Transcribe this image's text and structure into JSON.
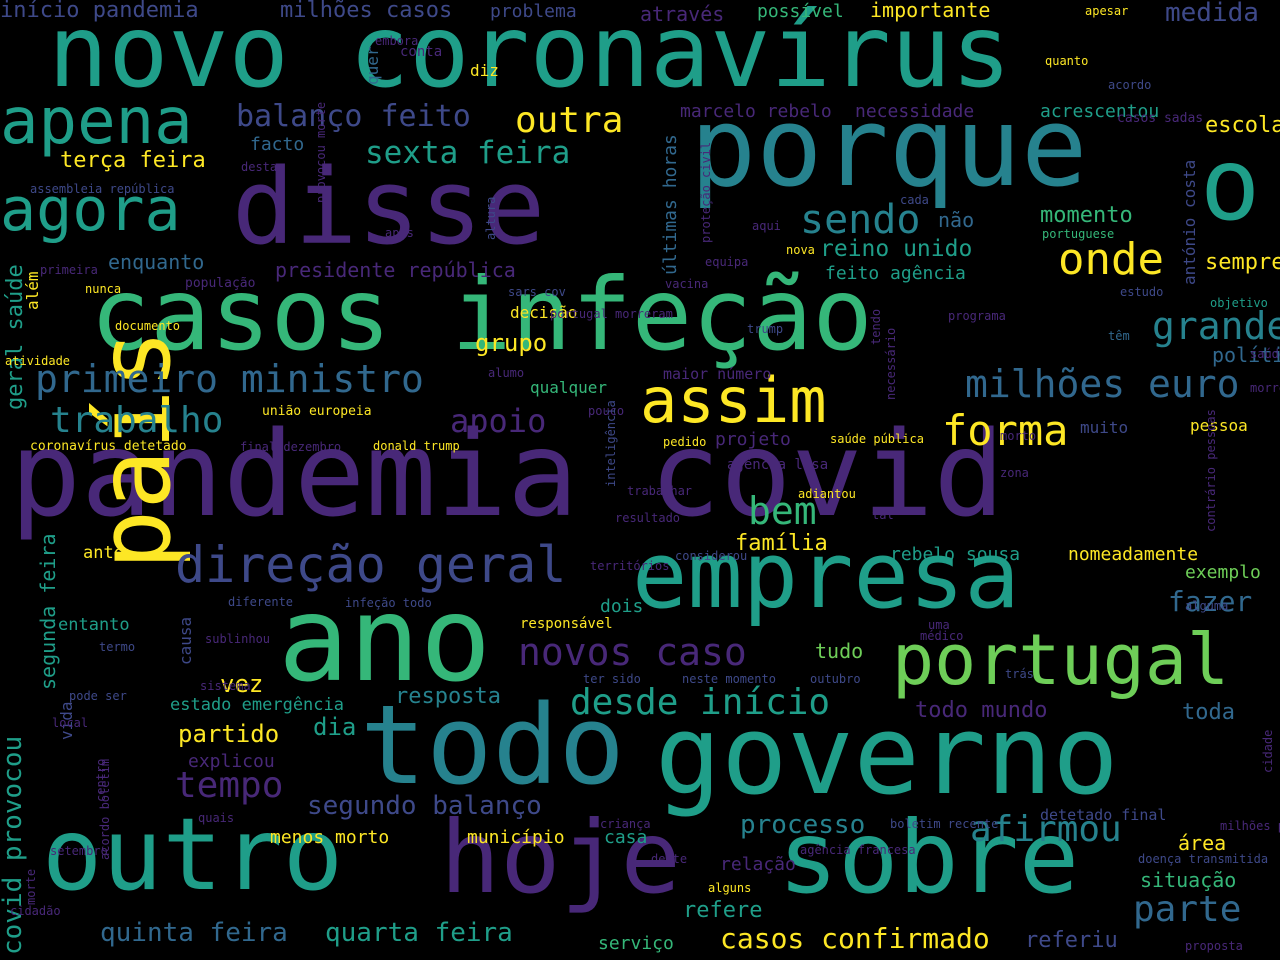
{
  "palette": {
    "background": "#000000",
    "purple": "#482878",
    "indigo": "#3e4989",
    "blue": "#31688e",
    "teal": "#26828e",
    "sea": "#1f9e89",
    "green": "#35b779",
    "lime": "#6ece58",
    "yellow": "#fde725"
  },
  "words": [
    {
      "text": "pandemia covid",
      "color": "purple"
    },
    {
      "text": "novo coronavírus",
      "color": "sea"
    },
    {
      "text": "casos infeção",
      "color": "green"
    },
    {
      "text": "disse",
      "color": "purple"
    },
    {
      "text": "porque",
      "color": "teal"
    },
    {
      "text": "o",
      "color": "sea"
    },
    {
      "text": "governo",
      "color": "sea"
    },
    {
      "text": "todo",
      "color": "teal"
    },
    {
      "text": "ano",
      "color": "green"
    },
    {
      "text": "país",
      "color": "yellow"
    },
    {
      "text": "empresa",
      "color": "sea"
    },
    {
      "text": "outro",
      "color": "sea"
    },
    {
      "text": "hoje",
      "color": "purple"
    },
    {
      "text": "sobre",
      "color": "sea"
    },
    {
      "text": "portugal",
      "color": "lime"
    },
    {
      "text": "apena",
      "color": "sea"
    },
    {
      "text": "agora",
      "color": "sea"
    },
    {
      "text": "assim",
      "color": "yellow"
    },
    {
      "text": "primeiro ministro",
      "color": "blue"
    },
    {
      "text": "milhões euro",
      "color": "blue"
    },
    {
      "text": "direção geral",
      "color": "indigo"
    },
    {
      "text": "trabalho",
      "color": "teal"
    },
    {
      "text": "forma",
      "color": "yellow"
    },
    {
      "text": "onde",
      "color": "yellow"
    },
    {
      "text": "sendo",
      "color": "teal"
    },
    {
      "text": "outra",
      "color": "yellow"
    },
    {
      "text": "sexta feira",
      "color": "sea"
    },
    {
      "text": "balanço feito",
      "color": "indigo"
    },
    {
      "text": "desde início",
      "color": "sea"
    },
    {
      "text": "afirmou",
      "color": "teal"
    },
    {
      "text": "novos caso",
      "color": "purple"
    },
    {
      "text": "parte",
      "color": "blue"
    },
    {
      "text": "bem",
      "color": "green"
    },
    {
      "text": "tempo",
      "color": "purple"
    },
    {
      "text": "casos confirmado",
      "color": "yellow"
    },
    {
      "text": "quinta feira",
      "color": "blue"
    },
    {
      "text": "quarta feira",
      "color": "sea"
    },
    {
      "text": "segundo balanço",
      "color": "indigo"
    },
    {
      "text": "processo",
      "color": "teal"
    },
    {
      "text": "reino unido",
      "color": "sea"
    },
    {
      "text": "apoio",
      "color": "purple"
    },
    {
      "text": "família",
      "color": "yellow"
    },
    {
      "text": "partido",
      "color": "yellow"
    },
    {
      "text": "dia",
      "color": "sea"
    },
    {
      "text": "vez",
      "color": "yellow"
    },
    {
      "text": "resposta",
      "color": "teal"
    },
    {
      "text": "momento",
      "color": "green"
    },
    {
      "text": "grupo",
      "color": "yellow"
    },
    {
      "text": "início pandemia",
      "color": "indigo"
    },
    {
      "text": "milhões casos",
      "color": "indigo"
    },
    {
      "text": "importante",
      "color": "yellow"
    },
    {
      "text": "medida",
      "color": "indigo"
    },
    {
      "text": "possível",
      "color": "green"
    },
    {
      "text": "através",
      "color": "purple"
    },
    {
      "text": "problema",
      "color": "indigo"
    },
    {
      "text": "escola",
      "color": "yellow"
    },
    {
      "text": "sempre",
      "color": "yellow"
    },
    {
      "text": "grande",
      "color": "teal"
    },
    {
      "text": "política",
      "color": "blue"
    },
    {
      "text": "terça feira",
      "color": "yellow"
    },
    {
      "text": "facto",
      "color": "blue"
    },
    {
      "text": "enquanto",
      "color": "blue"
    },
    {
      "text": "presidente república",
      "color": "purple"
    },
    {
      "text": "marcelo rebelo",
      "color": "purple"
    },
    {
      "text": "necessidade",
      "color": "purple"
    },
    {
      "text": "acrescentou",
      "color": "sea"
    },
    {
      "text": "feito agência",
      "color": "sea"
    },
    {
      "text": "não",
      "color": "blue"
    },
    {
      "text": "portuguese",
      "color": "green"
    },
    {
      "text": "decisão",
      "color": "yellow"
    },
    {
      "text": "maior número",
      "color": "purple"
    },
    {
      "text": "projeto",
      "color": "purple"
    },
    {
      "text": "saúde pública",
      "color": "yellow"
    },
    {
      "text": "agência lusa",
      "color": "purple"
    },
    {
      "text": "rebelo sousa",
      "color": "sea"
    },
    {
      "text": "nomeadamente",
      "color": "yellow"
    },
    {
      "text": "exemplo",
      "color": "lime"
    },
    {
      "text": "fazer",
      "color": "blue"
    },
    {
      "text": "toda",
      "color": "blue"
    },
    {
      "text": "todo mundo",
      "color": "purple"
    },
    {
      "text": "dois",
      "color": "sea"
    },
    {
      "text": "responsável",
      "color": "yellow"
    },
    {
      "text": "tudo",
      "color": "lime"
    },
    {
      "text": "explicou",
      "color": "purple"
    },
    {
      "text": "estado emergência",
      "color": "sea"
    },
    {
      "text": "menos morto",
      "color": "yellow"
    },
    {
      "text": "município",
      "color": "yellow"
    },
    {
      "text": "casa",
      "color": "sea"
    },
    {
      "text": "relação",
      "color": "purple"
    },
    {
      "text": "refere",
      "color": "sea"
    },
    {
      "text": "situação",
      "color": "green"
    },
    {
      "text": "área",
      "color": "yellow"
    },
    {
      "text": "referiu",
      "color": "indigo"
    },
    {
      "text": "serviço",
      "color": "green"
    },
    {
      "text": "detetado final",
      "color": "indigo"
    },
    {
      "text": "ante",
      "color": "yellow"
    },
    {
      "text": "entanto",
      "color": "sea"
    },
    {
      "text": "pessoa",
      "color": "yellow"
    },
    {
      "text": "muito",
      "color": "indigo"
    },
    {
      "text": "união europeia",
      "color": "yellow"
    },
    {
      "text": "coronavírus detetado",
      "color": "yellow"
    },
    {
      "text": "assembleia república",
      "color": "indigo"
    },
    {
      "text": "população",
      "color": "purple"
    },
    {
      "text": "nunca",
      "color": "yellow"
    },
    {
      "text": "qualquer",
      "color": "green"
    },
    {
      "text": "pedido",
      "color": "yellow"
    },
    {
      "text": "últimas horas",
      "color": "blue"
    },
    {
      "text": "covid provocou",
      "color": "sea"
    },
    {
      "text": "segunda feira",
      "color": "sea"
    },
    {
      "text": "geral saúde",
      "color": "sea"
    },
    {
      "text": "além",
      "color": "yellow"
    },
    {
      "text": "causa",
      "color": "indigo"
    },
    {
      "text": "vida",
      "color": "indigo"
    },
    {
      "text": "quer",
      "color": "blue"
    },
    {
      "text": "diz",
      "color": "yellow"
    },
    {
      "text": "conta",
      "color": "purple"
    },
    {
      "text": "apesar",
      "color": "yellow"
    },
    {
      "text": "quanto",
      "color": "yellow"
    },
    {
      "text": "acordo",
      "color": "indigo"
    },
    {
      "text": "casos sadas",
      "color": "purple"
    },
    {
      "text": "antónio costa",
      "color": "indigo"
    },
    {
      "text": "necessário",
      "color": "purple"
    },
    {
      "text": "adiantou",
      "color": "yellow"
    },
    {
      "text": "considerou",
      "color": "indigo"
    },
    {
      "text": "sistema",
      "color": "purple"
    },
    {
      "text": "sublinhou",
      "color": "purple"
    },
    {
      "text": "diferente",
      "color": "indigo"
    },
    {
      "text": "infeção todo",
      "color": "indigo"
    },
    {
      "text": "ter sido",
      "color": "indigo"
    },
    {
      "text": "neste momento",
      "color": "indigo"
    },
    {
      "text": "outubro",
      "color": "indigo"
    },
    {
      "text": "criança",
      "color": "purple"
    },
    {
      "text": "agência francesa",
      "color": "purple"
    },
    {
      "text": "alguns",
      "color": "yellow"
    },
    {
      "text": "proposta",
      "color": "purple"
    },
    {
      "text": "trás",
      "color": "indigo"
    },
    {
      "text": "final dezembro",
      "color": "purple"
    },
    {
      "text": "donald trump",
      "color": "yellow"
    },
    {
      "text": "sars cov",
      "color": "indigo"
    },
    {
      "text": "equipa",
      "color": "purple"
    },
    {
      "text": "vacina",
      "color": "purple"
    },
    {
      "text": "aqui",
      "color": "purple"
    },
    {
      "text": "nova",
      "color": "yellow"
    },
    {
      "text": "estudo",
      "color": "indigo"
    },
    {
      "text": "objetivo",
      "color": "sea"
    },
    {
      "text": "programa",
      "color": "purple"
    },
    {
      "text": "têm",
      "color": "blue"
    },
    {
      "text": "trump",
      "color": "indigo"
    },
    {
      "text": "alguma",
      "color": "indigo"
    },
    {
      "text": "médico",
      "color": "purple"
    },
    {
      "text": "resultado",
      "color": "purple"
    },
    {
      "text": "tal",
      "color": "purple"
    },
    {
      "text": "trabalhar",
      "color": "purple"
    },
    {
      "text": "termo",
      "color": "indigo"
    },
    {
      "text": "pode ser",
      "color": "indigo"
    },
    {
      "text": "local",
      "color": "purple"
    },
    {
      "text": "quais",
      "color": "purple"
    },
    {
      "text": "setembro",
      "color": "purple"
    },
    {
      "text": "cidadão",
      "color": "purple"
    },
    {
      "text": "atividade",
      "color": "yellow"
    },
    {
      "text": "documento",
      "color": "yellow"
    },
    {
      "text": "primeira",
      "color": "purple"
    },
    {
      "text": "altura",
      "color": "indigo"
    },
    {
      "text": "cada",
      "color": "indigo"
    },
    {
      "text": "desta",
      "color": "purple"
    },
    {
      "text": "após",
      "color": "purple"
    },
    {
      "text": "pouco",
      "color": "purple"
    },
    {
      "text": "alumo",
      "color": "purple"
    },
    {
      "text": "embora",
      "color": "purple"
    },
    {
      "text": "doença transmitida",
      "color": "indigo"
    },
    {
      "text": "boletim recente",
      "color": "indigo"
    },
    {
      "text": "provocou morte",
      "color": "purple"
    },
    {
      "text": "proteção civil",
      "color": "purple"
    },
    {
      "text": "acordo boletim",
      "color": "purple"
    },
    {
      "text": "cidade",
      "color": "purple"
    },
    {
      "text": "milhões pessoas",
      "color": "purple"
    },
    {
      "text": "deste",
      "color": "purple"
    },
    {
      "text": "morrem milhões",
      "color": "purple"
    },
    {
      "text": "saúde",
      "color": "purple"
    },
    {
      "text": "morte",
      "color": "purple"
    },
    {
      "text": "centro",
      "color": "purple"
    },
    {
      "text": "tendo",
      "color": "purple"
    },
    {
      "text": "inteligência",
      "color": "indigo"
    },
    {
      "text": "territórios",
      "color": "purple"
    },
    {
      "text": "contrário pessoas",
      "color": "purple"
    },
    {
      "text": "portugal morreram",
      "color": "purple"
    },
    {
      "text": "zona",
      "color": "purple"
    },
    {
      "text": "uma",
      "color": "purple"
    },
    {
      "text": "morto",
      "color": "purple"
    }
  ]
}
